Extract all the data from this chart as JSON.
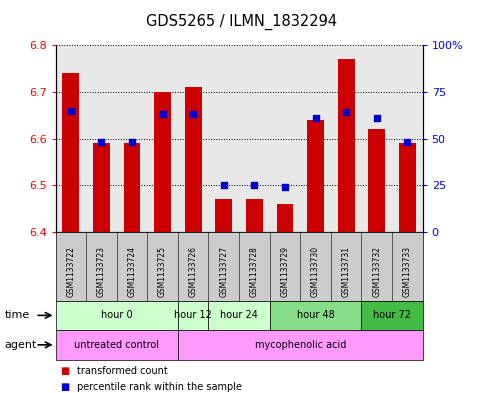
{
  "title": "GDS5265 / ILMN_1832294",
  "samples": [
    "GSM1133722",
    "GSM1133723",
    "GSM1133724",
    "GSM1133725",
    "GSM1133726",
    "GSM1133727",
    "GSM1133728",
    "GSM1133729",
    "GSM1133730",
    "GSM1133731",
    "GSM1133732",
    "GSM1133733"
  ],
  "transformed_count": [
    6.74,
    6.59,
    6.59,
    6.7,
    6.71,
    6.47,
    6.47,
    6.46,
    6.64,
    6.77,
    6.62,
    6.59
  ],
  "percentile_rank": [
    65,
    48,
    48,
    63,
    63,
    25,
    25,
    24,
    61,
    64,
    61,
    48
  ],
  "ylim_left": [
    6.4,
    6.8
  ],
  "ylim_right": [
    0,
    100
  ],
  "yticks_left": [
    6.4,
    6.5,
    6.6,
    6.7,
    6.8
  ],
  "yticks_right": [
    0,
    25,
    50,
    75,
    100
  ],
  "ytick_labels_right": [
    "0",
    "25",
    "50",
    "75",
    "100%"
  ],
  "bar_color": "#cc0000",
  "dot_color": "#0000cc",
  "bar_bottom": 6.4,
  "dot_size": 18,
  "time_groups": [
    {
      "label": "hour 0",
      "start": 0,
      "end": 3,
      "color": "#ccffcc"
    },
    {
      "label": "hour 12",
      "start": 4,
      "end": 4,
      "color": "#ccffcc"
    },
    {
      "label": "hour 24",
      "start": 5,
      "end": 6,
      "color": "#ccffcc"
    },
    {
      "label": "hour 48",
      "start": 7,
      "end": 9,
      "color": "#88dd88"
    },
    {
      "label": "hour 72",
      "start": 10,
      "end": 11,
      "color": "#44bb44"
    }
  ],
  "agent_groups": [
    {
      "label": "untreated control",
      "start": 0,
      "end": 3,
      "color": "#ff99ff"
    },
    {
      "label": "mycophenolic acid",
      "start": 4,
      "end": 11,
      "color": "#ff99ff"
    }
  ],
  "plot_facecolor": "#e8e8e8",
  "xlabel_area_color": "#cccccc"
}
